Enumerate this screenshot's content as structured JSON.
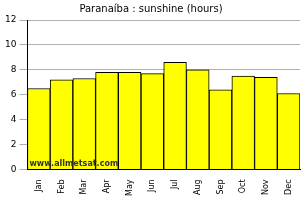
{
  "chart_data": {
    "type": "bar",
    "title": "Paranaíba : sunshine (hours)",
    "categories": [
      "Jan",
      "Feb",
      "Mar",
      "Apr",
      "May",
      "Jun",
      "Jul",
      "Aug",
      "Sep",
      "Oct",
      "Nov",
      "Dec"
    ],
    "values": [
      6.5,
      7.2,
      7.3,
      7.8,
      7.8,
      7.7,
      8.6,
      8.0,
      6.4,
      7.5,
      7.4,
      6.1
    ],
    "color": "#ffff00",
    "ylim": [
      0,
      12
    ],
    "yticks": [
      0,
      2,
      4,
      6,
      8,
      10,
      12
    ],
    "grid": true,
    "annotation": "www.allmetsat.com"
  }
}
